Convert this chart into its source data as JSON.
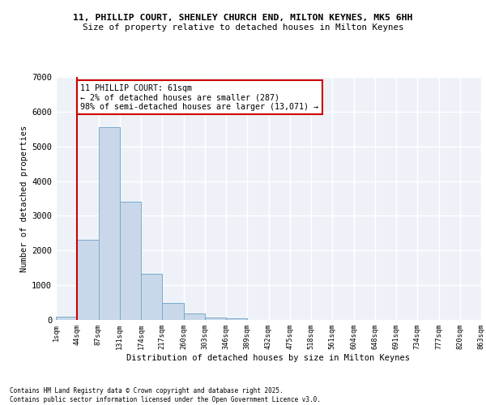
{
  "title_line1": "11, PHILLIP COURT, SHENLEY CHURCH END, MILTON KEYNES, MK5 6HH",
  "title_line2": "Size of property relative to detached houses in Milton Keynes",
  "xlabel": "Distribution of detached houses by size in Milton Keynes",
  "ylabel": "Number of detached properties",
  "bin_labels": [
    "1sqm",
    "44sqm",
    "87sqm",
    "131sqm",
    "174sqm",
    "217sqm",
    "260sqm",
    "303sqm",
    "346sqm",
    "389sqm",
    "432sqm",
    "475sqm",
    "518sqm",
    "561sqm",
    "604sqm",
    "648sqm",
    "691sqm",
    "734sqm",
    "777sqm",
    "820sqm",
    "863sqm"
  ],
  "bar_heights": [
    100,
    2300,
    5550,
    3400,
    1320,
    490,
    180,
    80,
    50,
    0,
    0,
    0,
    0,
    0,
    0,
    0,
    0,
    0,
    0,
    0
  ],
  "bar_color": "#c8d8ea",
  "bar_edge_color": "#7aaac8",
  "property_line_x": 1.0,
  "annotation_text": "11 PHILLIP COURT: 61sqm\n← 2% of detached houses are smaller (287)\n98% of semi-detached houses are larger (13,071) →",
  "annotation_box_color": "#ffffff",
  "annotation_box_edge": "#cc0000",
  "vline_color": "#cc0000",
  "ylim": [
    0,
    7000
  ],
  "yticks": [
    0,
    1000,
    2000,
    3000,
    4000,
    5000,
    6000,
    7000
  ],
  "bg_color": "#eef2f8",
  "grid_color": "#ffffff",
  "footer_line1": "Contains HM Land Registry data © Crown copyright and database right 2025.",
  "footer_line2": "Contains public sector information licensed under the Open Government Licence v3.0."
}
